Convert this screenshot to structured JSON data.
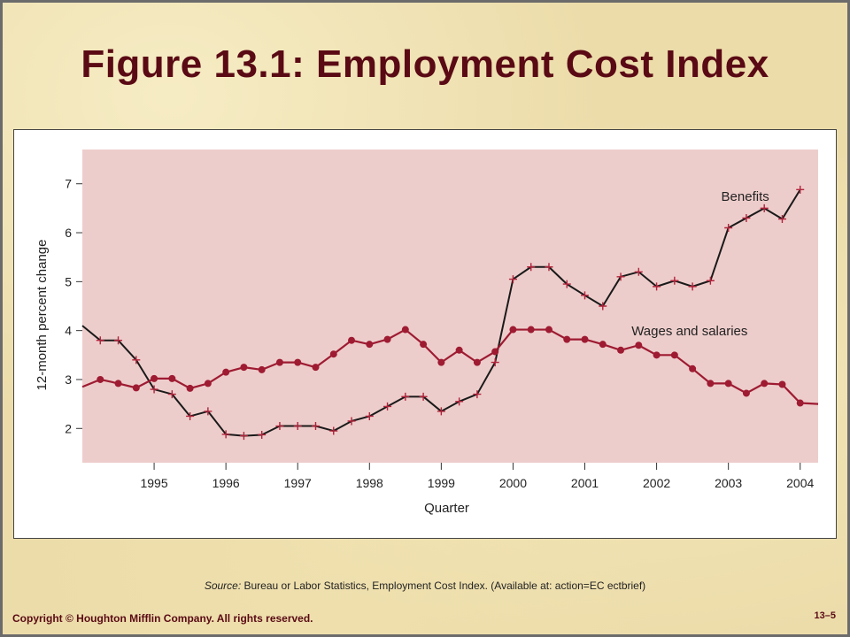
{
  "slide": {
    "title": "Figure 13.1:  Employment Cost Index",
    "source_label": "Source:",
    "source_text": " Bureau  or Labor Statistics, Employment Cost Index. (Available at: action=EC ectbrief)",
    "copyright": "Copyright © Houghton Mifflin Company. All rights reserved.",
    "slide_number": "13–5"
  },
  "colors": {
    "plot_bg": "#edcdcb",
    "benefits_line": "#1a1a1a",
    "benefits_marker": "#b0233b",
    "wages_line": "#9e1b32",
    "title": "#5a0a14"
  },
  "chart_data": {
    "type": "line",
    "title": "",
    "xlabel": "Quarter",
    "ylabel": "12-month percent change",
    "ylim": [
      1.3,
      7.7
    ],
    "xlim": [
      1994.0,
      2004.25
    ],
    "yticks": [
      2,
      3,
      4,
      5,
      6,
      7
    ],
    "xticks": [
      {
        "label": "1995",
        "x": 1995.0
      },
      {
        "label": "1996",
        "x": 1996.0
      },
      {
        "label": "1997",
        "x": 1997.0
      },
      {
        "label": "1998",
        "x": 1998.0
      },
      {
        "label": "1999",
        "x": 1999.0
      },
      {
        "label": "2000",
        "x": 2000.0
      },
      {
        "label": "2001",
        "x": 2001.0
      },
      {
        "label": "2002",
        "x": 2002.0
      },
      {
        "label": "2003",
        "x": 2003.0
      },
      {
        "label": "2004",
        "x": 2004.0
      }
    ],
    "grid": false,
    "series": [
      {
        "name": "Benefits",
        "marker": "plus",
        "points": [
          [
            1994.0,
            4.1
          ],
          [
            1994.25,
            3.8
          ],
          [
            1994.5,
            3.8
          ],
          [
            1994.75,
            3.4
          ],
          [
            1995.0,
            2.8
          ],
          [
            1995.25,
            2.7
          ],
          [
            1995.5,
            2.25
          ],
          [
            1995.75,
            2.35
          ],
          [
            1996.0,
            1.88
          ],
          [
            1996.25,
            1.85
          ],
          [
            1996.5,
            1.87
          ],
          [
            1996.75,
            2.05
          ],
          [
            1997.0,
            2.05
          ],
          [
            1997.25,
            2.05
          ],
          [
            1997.5,
            1.95
          ],
          [
            1997.75,
            2.15
          ],
          [
            1998.0,
            2.25
          ],
          [
            1998.25,
            2.45
          ],
          [
            1998.5,
            2.65
          ],
          [
            1998.75,
            2.65
          ],
          [
            1999.0,
            2.35
          ],
          [
            1999.25,
            2.55
          ],
          [
            1999.5,
            2.7
          ],
          [
            1999.75,
            3.35
          ],
          [
            2000.0,
            5.05
          ],
          [
            2000.25,
            5.3
          ],
          [
            2000.5,
            5.3
          ],
          [
            2000.75,
            4.95
          ],
          [
            2001.0,
            4.72
          ],
          [
            2001.25,
            4.5
          ],
          [
            2001.5,
            5.1
          ],
          [
            2001.75,
            5.2
          ],
          [
            2002.0,
            4.9
          ],
          [
            2002.25,
            5.02
          ],
          [
            2002.5,
            4.9
          ],
          [
            2002.75,
            5.02
          ],
          [
            2003.0,
            6.1
          ],
          [
            2003.25,
            6.3
          ],
          [
            2003.5,
            6.5
          ],
          [
            2003.75,
            6.28
          ],
          [
            2004.0,
            6.88
          ]
        ]
      },
      {
        "name": "Wages and salaries",
        "marker": "circle",
        "points": [
          [
            1994.0,
            2.85
          ],
          [
            1994.25,
            3.0
          ],
          [
            1994.5,
            2.92
          ],
          [
            1994.75,
            2.83
          ],
          [
            1995.0,
            3.02
          ],
          [
            1995.25,
            3.02
          ],
          [
            1995.5,
            2.82
          ],
          [
            1995.75,
            2.92
          ],
          [
            1996.0,
            3.15
          ],
          [
            1996.25,
            3.25
          ],
          [
            1996.5,
            3.2
          ],
          [
            1996.75,
            3.35
          ],
          [
            1997.0,
            3.35
          ],
          [
            1997.25,
            3.25
          ],
          [
            1997.5,
            3.52
          ],
          [
            1997.75,
            3.8
          ],
          [
            1998.0,
            3.72
          ],
          [
            1998.25,
            3.82
          ],
          [
            1998.5,
            4.02
          ],
          [
            1998.75,
            3.72
          ],
          [
            1999.0,
            3.35
          ],
          [
            1999.25,
            3.6
          ],
          [
            1999.5,
            3.35
          ],
          [
            1999.75,
            3.57
          ],
          [
            2000.0,
            4.02
          ],
          [
            2000.25,
            4.02
          ],
          [
            2000.5,
            4.02
          ],
          [
            2000.75,
            3.82
          ],
          [
            2001.0,
            3.82
          ],
          [
            2001.25,
            3.72
          ],
          [
            2001.5,
            3.6
          ],
          [
            2001.75,
            3.7
          ],
          [
            2002.0,
            3.5
          ],
          [
            2002.25,
            3.5
          ],
          [
            2002.5,
            3.22
          ],
          [
            2002.75,
            2.92
          ],
          [
            2003.0,
            2.92
          ],
          [
            2003.25,
            2.72
          ],
          [
            2003.5,
            2.92
          ],
          [
            2003.75,
            2.9
          ],
          [
            2004.0,
            2.52
          ],
          [
            2004.25,
            2.5
          ]
        ]
      }
    ],
    "annotations": [
      {
        "text": "Benefits",
        "x": 2002.9,
        "y": 6.65
      },
      {
        "text": "Wages and salaries",
        "x": 2001.65,
        "y": 3.9
      }
    ]
  }
}
